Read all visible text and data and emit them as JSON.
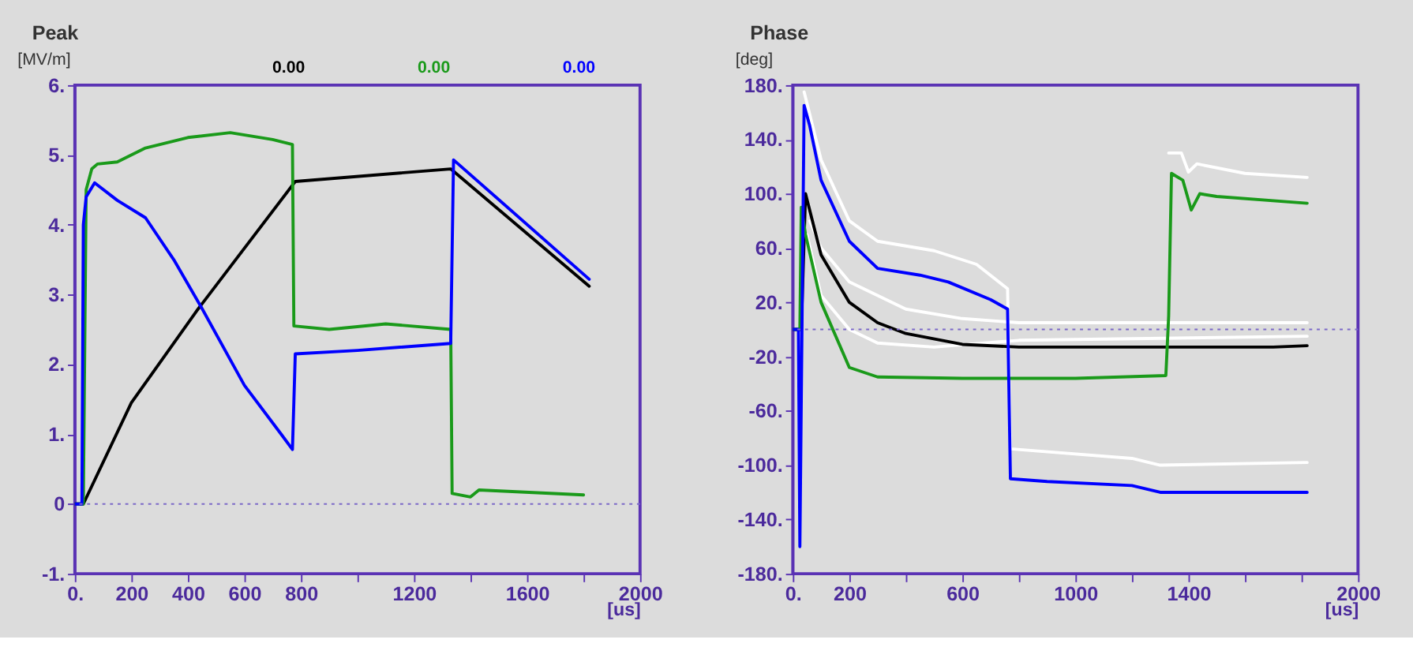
{
  "chart_data": [
    {
      "type": "line",
      "title": "Peak",
      "ylabel": "[MV/m]",
      "xlabel": "[us]",
      "annotations": [
        "0.00",
        "0.00",
        "0.00"
      ],
      "grid": false,
      "legend": false,
      "line_style": "solid",
      "marker": "none",
      "xlim": [
        0,
        2000
      ],
      "xticks": [
        {
          "value": 0,
          "label": "0."
        },
        200,
        400,
        600,
        800,
        {
          "value": 1000,
          "label": null
        },
        1200,
        {
          "value": 1400,
          "label": null
        },
        1600,
        {
          "value": 1800,
          "label": null
        },
        2000
      ],
      "ylim": [
        -1,
        6
      ],
      "yticks": [
        {
          "value": -1,
          "label": "-1."
        },
        0,
        {
          "value": 1,
          "label": "1."
        },
        {
          "value": 2,
          "label": "2."
        },
        {
          "value": 3,
          "label": "3."
        },
        {
          "value": 4,
          "label": "4."
        },
        {
          "value": 5,
          "label": "5."
        },
        {
          "value": 6,
          "label": "6."
        }
      ],
      "ref_lines": [
        {
          "axis": "y",
          "value": 0,
          "label": null,
          "color": "#7b68c8",
          "line_style": "dotted"
        }
      ],
      "series": [
        {
          "color": "#000000",
          "x": [
            0,
            30,
            200,
            430,
            780,
            1330,
            1820
          ],
          "values": [
            0,
            0,
            1.45,
            2.76,
            4.62,
            4.8,
            3.12
          ]
        },
        {
          "color": "#1a9a1a",
          "x": [
            0,
            30,
            40,
            60,
            80,
            150,
            250,
            400,
            550,
            700,
            770,
            775,
            900,
            1100,
            1330,
            1335,
            1400,
            1430,
            1800
          ],
          "values": [
            0,
            0,
            4.5,
            4.8,
            4.87,
            4.9,
            5.1,
            5.25,
            5.32,
            5.22,
            5.15,
            2.55,
            2.5,
            2.58,
            2.5,
            0.15,
            0.1,
            0.2,
            0.13
          ]
        },
        {
          "color": "#0000ff",
          "x": [
            0,
            25,
            30,
            40,
            70,
            150,
            250,
            350,
            450,
            600,
            730,
            770,
            780,
            1000,
            1330,
            1340,
            1820
          ],
          "values": [
            0,
            0,
            4.0,
            4.4,
            4.6,
            4.35,
            4.1,
            3.5,
            2.8,
            1.7,
            1.0,
            0.78,
            2.15,
            2.2,
            2.3,
            4.93,
            3.22
          ]
        }
      ]
    },
    {
      "type": "line",
      "title": "Phase",
      "ylabel": "[deg]",
      "xlabel": "[us]",
      "grid": false,
      "legend": false,
      "line_style": "solid",
      "marker": "none",
      "xlim": [
        0,
        2000
      ],
      "xticks": [
        {
          "value": 0,
          "label": "0."
        },
        200,
        {
          "value": 400,
          "label": null
        },
        600,
        {
          "value": 800,
          "label": null
        },
        1000,
        {
          "value": 1200,
          "label": null
        },
        1400,
        {
          "value": 1600,
          "label": null
        },
        {
          "value": 1800,
          "label": null
        },
        2000
      ],
      "ylim": [
        -180,
        180
      ],
      "yticks": [
        {
          "value": -180,
          "label": "-180."
        },
        {
          "value": -140,
          "label": "-140."
        },
        {
          "value": -100,
          "label": "-100."
        },
        {
          "value": -60,
          "label": "-60."
        },
        {
          "value": -20,
          "label": "-20."
        },
        {
          "value": 20,
          "label": "20."
        },
        {
          "value": 60,
          "label": "60."
        },
        {
          "value": 100,
          "label": "100."
        },
        {
          "value": 140,
          "label": "140."
        },
        {
          "value": 180,
          "label": "180."
        }
      ],
      "ref_lines": [
        {
          "axis": "y",
          "value": 0,
          "label": null,
          "color": "#7b68c8",
          "line_style": "dotted"
        }
      ],
      "series": [
        {
          "color": "#ffffff",
          "x": [
            40,
            100,
            200,
            300,
            500,
            650,
            760,
            770,
            1200,
            1300,
            1820
          ],
          "values": [
            175,
            125,
            80,
            65,
            58,
            48,
            30,
            -88,
            -95,
            -100,
            -98
          ]
        },
        {
          "color": "#ffffff",
          "x": [
            60,
            100,
            200,
            400,
            600,
            800,
            1820
          ],
          "values": [
            80,
            60,
            35,
            15,
            8,
            5,
            5
          ]
        },
        {
          "color": "#ffffff",
          "x": [
            50,
            100,
            200,
            300,
            500,
            800,
            1820
          ],
          "values": [
            70,
            25,
            0,
            -10,
            -13,
            -8,
            -5
          ]
        },
        {
          "color": "#ffffff",
          "x": [
            1330,
            1375,
            1400,
            1430,
            1600,
            1820
          ],
          "values": [
            130,
            130,
            116,
            122,
            115,
            112
          ]
        },
        {
          "color": "#000000",
          "x": [
            0,
            30,
            45,
            100,
            200,
            300,
            400,
            600,
            800,
            1700,
            1820
          ],
          "values": [
            0,
            0,
            100,
            55,
            20,
            5,
            -3,
            -11,
            -13,
            -13,
            -12
          ]
        },
        {
          "color": "#1a9a1a",
          "x": [
            0,
            25,
            30,
            45,
            100,
            200,
            300,
            600,
            1000,
            1320,
            1330,
            1340,
            1380,
            1410,
            1440,
            1500,
            1820
          ],
          "values": [
            0,
            0,
            90,
            70,
            20,
            -28,
            -35,
            -36,
            -36,
            -34,
            10,
            115,
            110,
            88,
            100,
            98,
            93
          ]
        },
        {
          "color": "#0000ff",
          "x": [
            0,
            20,
            25,
            40,
            60,
            100,
            200,
            300,
            450,
            550,
            700,
            760,
            770,
            900,
            1200,
            1300,
            1820
          ],
          "values": [
            0,
            0,
            -160,
            165,
            150,
            110,
            65,
            45,
            40,
            35,
            22,
            15,
            -110,
            -112,
            -115,
            -120,
            -120
          ]
        }
      ]
    }
  ]
}
